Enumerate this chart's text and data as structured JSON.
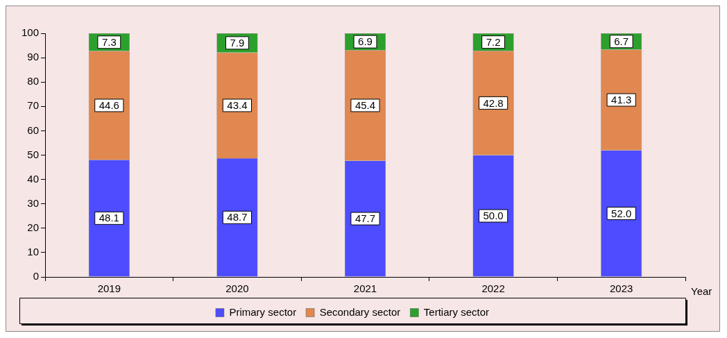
{
  "chart_data": {
    "type": "bar",
    "stacked": true,
    "xlabel": "Year",
    "categories": [
      "2019",
      "2020",
      "2021",
      "2022",
      "2023"
    ],
    "series": [
      {
        "name": "Primary sector",
        "color": "#4d4dff",
        "values": [
          48.1,
          48.7,
          47.7,
          50.0,
          52.0
        ],
        "value_labels": [
          "48.1",
          "48.7",
          "47.7",
          "50.0",
          "52.0"
        ]
      },
      {
        "name": "Secondary sector",
        "color": "#e08850",
        "values": [
          44.6,
          43.4,
          45.4,
          42.8,
          41.3
        ],
        "value_labels": [
          "44.6",
          "43.4",
          "45.4",
          "42.8",
          "41.3"
        ]
      },
      {
        "name": "Tertiary sector",
        "color": "#2ca02c",
        "values": [
          7.3,
          7.9,
          6.9,
          7.2,
          6.7
        ],
        "value_labels": [
          "7.3",
          "7.9",
          "6.9",
          "7.2",
          "6.7"
        ]
      }
    ],
    "ylim": [
      0,
      100
    ],
    "yticks": [
      0,
      10,
      20,
      30,
      40,
      50,
      60,
      70,
      80,
      90,
      100
    ],
    "grid": false,
    "legend": "bottom"
  }
}
